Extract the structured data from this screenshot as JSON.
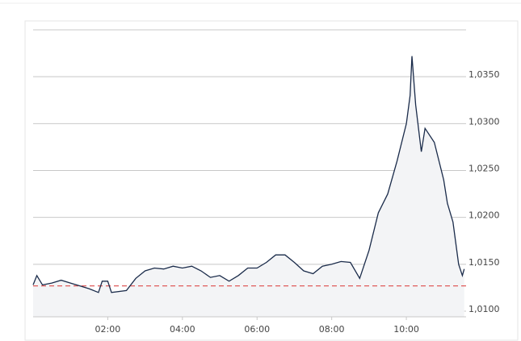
{
  "chart_data": {
    "type": "line",
    "x": [
      0,
      0.1,
      0.25,
      0.5,
      0.75,
      1.0,
      1.25,
      1.5,
      1.75,
      1.85,
      2.0,
      2.1,
      2.5,
      2.75,
      3.0,
      3.25,
      3.5,
      3.75,
      4.0,
      4.25,
      4.5,
      4.75,
      5.0,
      5.25,
      5.5,
      5.75,
      6.0,
      6.25,
      6.5,
      6.75,
      7.0,
      7.25,
      7.5,
      7.75,
      8.0,
      8.25,
      8.5,
      8.75,
      9.0,
      9.25,
      9.5,
      9.75,
      10.0,
      10.1,
      10.15,
      10.25,
      10.4,
      10.5,
      10.75,
      11.0,
      11.1,
      11.25,
      11.4,
      11.5,
      11.55
    ],
    "series": [
      {
        "color": "#1a2b4a",
        "values": [
          1.0128,
          1.0138,
          1.0128,
          1.013,
          1.0133,
          1.013,
          1.0127,
          1.0124,
          1.012,
          1.0132,
          1.0132,
          1.012,
          1.0122,
          1.0135,
          1.0143,
          1.0146,
          1.0145,
          1.0148,
          1.0146,
          1.0148,
          1.0143,
          1.0136,
          1.0138,
          1.0132,
          1.0138,
          1.0146,
          1.0146,
          1.0152,
          1.016,
          1.016,
          1.0152,
          1.0143,
          1.014,
          1.0148,
          1.015,
          1.0153,
          1.0152,
          1.0135,
          1.0165,
          1.0205,
          1.0225,
          1.026,
          1.03,
          1.033,
          1.0372,
          1.032,
          1.027,
          1.0295,
          1.028,
          1.024,
          1.0215,
          1.0195,
          1.015,
          1.0138,
          1.0145
        ]
      }
    ],
    "fill": "#f3f4f6",
    "reference_line": {
      "value": 1.0127,
      "color": "#e05a5a"
    },
    "xlim": [
      0,
      11.6
    ],
    "xticks": [
      {
        "value": 2,
        "label": "02:00"
      },
      {
        "value": 4,
        "label": "04:00"
      },
      {
        "value": 6,
        "label": "06:00"
      },
      {
        "value": 8,
        "label": "08:00"
      },
      {
        "value": 10,
        "label": "10:00"
      }
    ],
    "ylim": [
      1.0094,
      1.04
    ],
    "yticks": [
      {
        "value": 1.01,
        "label": "1,0100"
      },
      {
        "value": 1.015,
        "label": "1,0150"
      },
      {
        "value": 1.02,
        "label": "1,0200"
      },
      {
        "value": 1.025,
        "label": "1,0250"
      },
      {
        "value": 1.03,
        "label": "1,0300"
      },
      {
        "value": 1.035,
        "label": "1,0350"
      },
      1.04
    ],
    "grid": true
  }
}
